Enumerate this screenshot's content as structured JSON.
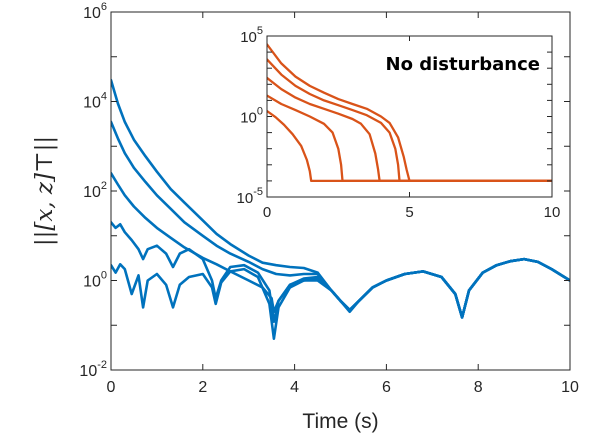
{
  "chart_data": [
    {
      "type": "line",
      "xlabel": "Time (s)",
      "ylabel": "||[x, z]⊤||",
      "xlim": [
        0,
        10
      ],
      "ylim": [
        0.01,
        1000000
      ],
      "y_scale": "log",
      "grid": false,
      "x_ticks": [
        "0",
        "2",
        "4",
        "6",
        "8",
        "10"
      ],
      "y_ticks": [
        {
          "value": 0.01,
          "base": "10",
          "exp": "-2"
        },
        {
          "value": 1,
          "base": "10",
          "exp": "0"
        },
        {
          "value": 100,
          "base": "10",
          "exp": "2"
        },
        {
          "value": 10000,
          "base": "10",
          "exp": "4"
        },
        {
          "value": 1000000,
          "base": "10",
          "exp": "6"
        }
      ],
      "color": "#0072bd",
      "series": [
        {
          "x": [
            0,
            0.15,
            0.3,
            0.5,
            0.75,
            1.0,
            1.3,
            1.6,
            2.0,
            2.3,
            2.6,
            3.0,
            3.3,
            3.6,
            3.9,
            4.2,
            4.5,
            4.8,
            5.0,
            5.2,
            5.4,
            5.7,
            6.0,
            6.4,
            6.8,
            7.2,
            7.5,
            7.65,
            7.8,
            8.1,
            8.4,
            8.7,
            9.0,
            9.3,
            9.6,
            10.0
          ],
          "y": [
            30000,
            9000,
            3500,
            1400,
            600,
            270,
            110,
            55,
            22,
            11,
            6.5,
            3.6,
            2.5,
            2.2,
            2.0,
            1.9,
            1.5,
            0.6,
            0.35,
            0.22,
            0.35,
            0.7,
            1.0,
            1.4,
            1.6,
            1.2,
            0.5,
            0.15,
            0.6,
            1.5,
            2.2,
            2.7,
            3.0,
            2.6,
            1.8,
            1.0
          ]
        },
        {
          "x": [
            0,
            0.15,
            0.3,
            0.5,
            0.75,
            1.0,
            1.3,
            1.6,
            2.0,
            2.3,
            2.6,
            3.0,
            3.3,
            3.6,
            3.9,
            4.2,
            4.5,
            4.8,
            5.0,
            5.2,
            5.4,
            5.7,
            6.0,
            6.4,
            6.8,
            7.2,
            7.5,
            7.65,
            7.8,
            8.1,
            8.4,
            8.7,
            9.0,
            9.3,
            9.6,
            10.0
          ],
          "y": [
            3500,
            1500,
            700,
            330,
            160,
            80,
            40,
            20,
            10,
            6,
            4,
            2.6,
            1.8,
            1.4,
            1.3,
            1.4,
            1.4,
            0.6,
            0.35,
            0.22,
            0.35,
            0.7,
            1.0,
            1.4,
            1.6,
            1.2,
            0.5,
            0.15,
            0.6,
            1.5,
            2.2,
            2.7,
            3.0,
            2.6,
            1.8,
            1.0
          ]
        },
        {
          "x": [
            0,
            0.15,
            0.3,
            0.5,
            0.75,
            1.0,
            1.3,
            1.6,
            2.0,
            2.3,
            2.6,
            3.0,
            3.3,
            3.5,
            3.55,
            3.65,
            3.9,
            4.2,
            4.5,
            4.8,
            5.0,
            5.2,
            5.4,
            5.7,
            6.0,
            6.4,
            6.8,
            7.2,
            7.5,
            7.65,
            7.8,
            8.1,
            8.4,
            8.7,
            9.0,
            9.3,
            9.6,
            10.0
          ],
          "y": [
            250,
            140,
            80,
            45,
            25,
            15,
            9,
            5.5,
            3.2,
            2.3,
            1.6,
            1.0,
            0.7,
            0.4,
            0.2,
            0.35,
            0.8,
            1.1,
            1.2,
            0.6,
            0.35,
            0.22,
            0.35,
            0.7,
            1.0,
            1.4,
            1.6,
            1.2,
            0.5,
            0.15,
            0.6,
            1.5,
            2.2,
            2.7,
            3.0,
            2.6,
            1.8,
            1.0
          ]
        },
        {
          "x": [
            0,
            0.1,
            0.2,
            0.3,
            0.45,
            0.6,
            0.7,
            0.8,
            1.0,
            1.2,
            1.35,
            1.5,
            1.7,
            2.0,
            2.2,
            2.28,
            2.4,
            2.6,
            2.9,
            3.2,
            3.45,
            3.55,
            3.65,
            3.9,
            4.2,
            4.5,
            4.8,
            5.0,
            5.2,
            5.4,
            5.7,
            6.0,
            6.4,
            6.8,
            7.2,
            7.5,
            7.65,
            7.8,
            8.1,
            8.4,
            8.7,
            9.0,
            9.3,
            9.6,
            10.0
          ],
          "y": [
            20,
            15,
            18,
            12,
            8,
            5,
            3,
            5,
            6,
            4,
            2,
            4,
            5,
            3,
            1,
            0.4,
            1,
            2,
            2.2,
            1.5,
            0.6,
            0.12,
            0.35,
            0.8,
            1.0,
            1.1,
            0.6,
            0.35,
            0.22,
            0.35,
            0.7,
            1.0,
            1.4,
            1.6,
            1.2,
            0.5,
            0.15,
            0.6,
            1.5,
            2.2,
            2.7,
            3.0,
            2.6,
            1.8,
            1.0
          ]
        },
        {
          "x": [
            0,
            0.1,
            0.2,
            0.3,
            0.45,
            0.6,
            0.7,
            0.8,
            1.0,
            1.2,
            1.35,
            1.5,
            1.7,
            2.0,
            2.2,
            2.28,
            2.4,
            2.6,
            2.9,
            3.2,
            3.45,
            3.55,
            3.65,
            3.9,
            4.2,
            4.5,
            4.8,
            5.0,
            5.2,
            5.4,
            5.7,
            6.0,
            6.4,
            6.8,
            7.2,
            7.5,
            7.65,
            7.8,
            8.1,
            8.4,
            8.7,
            9.0,
            9.3,
            9.6,
            10.0
          ],
          "y": [
            2.2,
            1.5,
            2.3,
            1.8,
            0.5,
            1.3,
            0.25,
            1.0,
            1.4,
            0.8,
            0.25,
            0.8,
            1.2,
            1.4,
            0.7,
            0.3,
            0.9,
            1.6,
            1.8,
            1.2,
            0.3,
            0.05,
            0.25,
            0.7,
            1.0,
            1.0,
            0.6,
            0.35,
            0.2,
            0.35,
            0.7,
            1.0,
            1.4,
            1.6,
            1.2,
            0.5,
            0.15,
            0.6,
            1.5,
            2.2,
            2.7,
            3.0,
            2.6,
            1.8,
            1.0
          ]
        }
      ]
    },
    {
      "type": "line",
      "annotation": "No disturbance",
      "xlim": [
        0,
        10
      ],
      "ylim": [
        1e-05,
        100000
      ],
      "y_scale": "log",
      "grid": false,
      "x_ticks": [
        "0",
        "5",
        "10"
      ],
      "y_ticks": [
        {
          "value": 1e-05,
          "base": "10",
          "exp": "-5"
        },
        {
          "value": 1,
          "base": "10",
          "exp": "0"
        },
        {
          "value": 100000,
          "base": "10",
          "exp": "5"
        }
      ],
      "color": "#d95319",
      "floor_value": 0.0001,
      "series": [
        {
          "x": [
            0,
            0.5,
            1,
            1.5,
            2,
            2.5,
            3,
            3.5,
            4,
            4.3,
            4.6,
            4.8,
            4.9,
            5.0,
            10
          ],
          "y": [
            30000,
            2000,
            300,
            80,
            30,
            12,
            6,
            3,
            1,
            0.4,
            0.05,
            0.003,
            0.0005,
            0.0001,
            0.0001
          ]
        },
        {
          "x": [
            0,
            0.5,
            1,
            1.5,
            2,
            2.5,
            3,
            3.5,
            4,
            4.3,
            4.5,
            4.6,
            4.65,
            10
          ],
          "y": [
            3500,
            400,
            80,
            25,
            10,
            5,
            2.5,
            1.2,
            0.4,
            0.1,
            0.01,
            0.001,
            0.0001,
            0.0001
          ]
        },
        {
          "x": [
            0,
            0.5,
            1,
            1.5,
            2,
            2.5,
            3,
            3.3,
            3.6,
            3.8,
            3.9,
            3.95,
            10
          ],
          "y": [
            250,
            50,
            15,
            6,
            3,
            1.5,
            0.7,
            0.35,
            0.08,
            0.005,
            0.0005,
            0.0001,
            0.0001
          ]
        },
        {
          "x": [
            0,
            0.5,
            1,
            1.5,
            2,
            2.3,
            2.5,
            2.6,
            2.65,
            10
          ],
          "y": [
            20,
            6,
            2.5,
            1.0,
            0.35,
            0.1,
            0.01,
            0.001,
            0.0001,
            0.0001
          ]
        },
        {
          "x": [
            0,
            0.3,
            0.6,
            0.9,
            1.2,
            1.4,
            1.5,
            1.55,
            10
          ],
          "y": [
            2.2,
            0.9,
            0.3,
            0.08,
            0.015,
            0.002,
            0.0004,
            0.0001,
            0.0001
          ]
        }
      ]
    }
  ]
}
